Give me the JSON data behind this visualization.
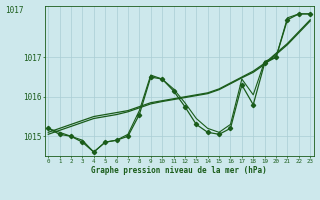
{
  "xlabel": "Graphe pression niveau de la mer (hPa)",
  "x_ticks": [
    0,
    1,
    2,
    3,
    4,
    5,
    6,
    7,
    8,
    9,
    10,
    11,
    12,
    13,
    14,
    15,
    16,
    17,
    18,
    19,
    20,
    21,
    22,
    23
  ],
  "ylim": [
    1014.5,
    1018.3
  ],
  "yticks": [
    1015,
    1016,
    1017
  ],
  "ytop_label": "1017",
  "background_color": "#cde8ec",
  "line_color": "#1a5c1a",
  "grid_color": "#aacdd4",
  "series_main": [
    1015.2,
    1015.05,
    1015.0,
    1014.85,
    1014.6,
    1014.85,
    1014.9,
    1015.0,
    1015.55,
    1016.5,
    1016.45,
    1016.15,
    1015.75,
    1015.3,
    1015.1,
    1015.05,
    1015.2,
    1016.3,
    1015.8,
    1016.85,
    1017.0,
    1017.95,
    1018.1,
    1018.1
  ],
  "series_zigzag": [
    1015.2,
    1015.1,
    1015.0,
    1014.9,
    1014.6,
    1014.85,
    1014.9,
    1015.05,
    1015.65,
    1016.55,
    1016.45,
    1016.2,
    1015.85,
    1015.45,
    1015.2,
    1015.1,
    1015.3,
    1016.45,
    1016.05,
    1016.9,
    1017.0,
    1018.0,
    1018.1,
    1018.1
  ],
  "series_smooth1": [
    1015.1,
    1015.2,
    1015.3,
    1015.4,
    1015.5,
    1015.55,
    1015.6,
    1015.65,
    1015.75,
    1015.85,
    1015.9,
    1015.95,
    1016.0,
    1016.05,
    1016.1,
    1016.2,
    1016.35,
    1016.5,
    1016.65,
    1016.85,
    1017.1,
    1017.35,
    1017.65,
    1017.95
  ],
  "series_smooth2": [
    1015.05,
    1015.15,
    1015.25,
    1015.35,
    1015.45,
    1015.5,
    1015.55,
    1015.62,
    1015.72,
    1015.82,
    1015.88,
    1015.93,
    1015.98,
    1016.03,
    1016.08,
    1016.18,
    1016.33,
    1016.48,
    1016.62,
    1016.82,
    1017.07,
    1017.32,
    1017.62,
    1017.92
  ]
}
